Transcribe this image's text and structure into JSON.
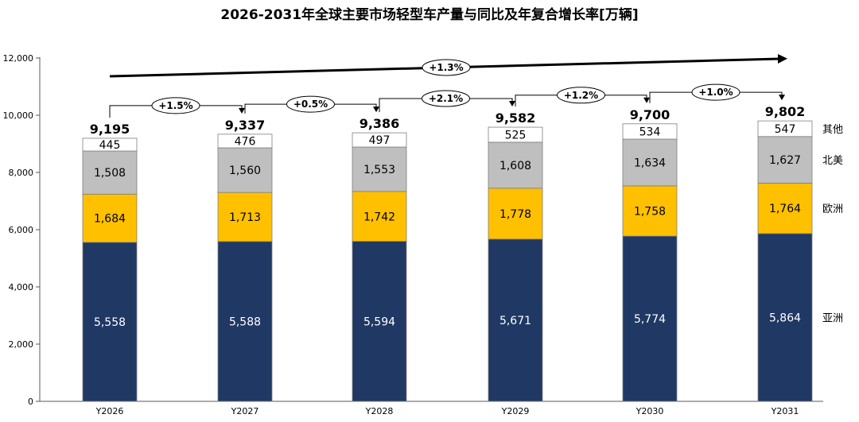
{
  "chart_data": {
    "type": "bar",
    "stacked": true,
    "title": "2026-2031年全球主要市场轻型车产量与同比及年复合增长率[万辆]",
    "categories": [
      "Y2026",
      "Y2027",
      "Y2028",
      "Y2029",
      "Y2030",
      "Y2031"
    ],
    "series": [
      {
        "name": "亚洲",
        "color": "#203864",
        "label_color": "#ffffff",
        "values": [
          5558,
          5588,
          5594,
          5671,
          5774,
          5864
        ]
      },
      {
        "name": "欧洲",
        "color": "#ffc000",
        "label_color": "#000000",
        "values": [
          1684,
          1713,
          1742,
          1778,
          1758,
          1764
        ]
      },
      {
        "name": "北美",
        "color": "#bfbfbf",
        "label_color": "#000000",
        "values": [
          1508,
          1560,
          1553,
          1608,
          1634,
          1627
        ]
      },
      {
        "name": "其他",
        "color": "#ffffff",
        "label_color": "#000000",
        "values": [
          445,
          476,
          497,
          525,
          534,
          547
        ]
      }
    ],
    "totals": [
      9195,
      9337,
      9386,
      9582,
      9700,
      9802
    ],
    "yoy_growth": [
      "+1.5%",
      "+0.5%",
      "+2.1%",
      "+1.2%",
      "+1.0%"
    ],
    "cagr": "+1.3%",
    "ylim": [
      0,
      12000
    ],
    "yticks": [
      0,
      2000,
      4000,
      6000,
      8000,
      10000,
      12000
    ],
    "legend_position": "right"
  }
}
